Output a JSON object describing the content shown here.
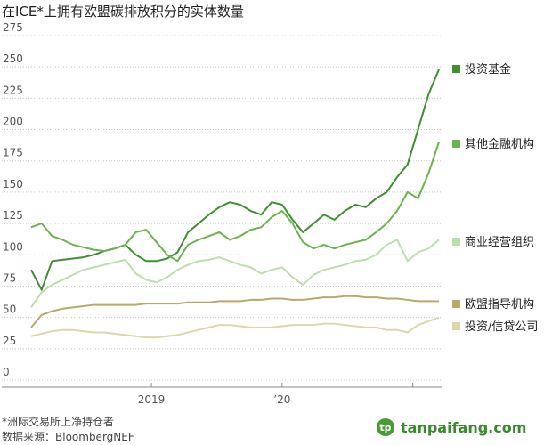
{
  "chart_data": {
    "type": "line",
    "title": "在ICE*上拥有欧盟碳排放积分的实体数量",
    "footnote": "*洲际交易所上净持仓者",
    "source": "数据来源：BloombergNEF",
    "watermark": "tanpaifang.com",
    "x": [
      2018.08,
      2018.16,
      2018.24,
      2018.32,
      2018.4,
      2018.48,
      2018.56,
      2018.64,
      2018.72,
      2018.8,
      2018.88,
      2018.96,
      2019.04,
      2019.12,
      2019.2,
      2019.28,
      2019.36,
      2019.44,
      2019.52,
      2019.6,
      2019.68,
      2019.76,
      2019.84,
      2019.92,
      2020.0,
      2020.08,
      2020.16,
      2020.24,
      2020.32,
      2020.4,
      2020.48,
      2020.56,
      2020.64,
      2020.72,
      2020.8,
      2020.88,
      2020.96,
      2021.04,
      2021.12,
      2021.2
    ],
    "xlim": [
      2018.08,
      2021.2
    ],
    "xticks": [
      2019,
      {
        "value": 2020,
        "label": "’20"
      }
    ],
    "minor_xticks": [
      2021
    ],
    "ylim": [
      0,
      275
    ],
    "yticks": [
      0,
      25,
      50,
      75,
      100,
      125,
      150,
      175,
      200,
      225,
      250,
      275
    ],
    "grid": true,
    "series": [
      {
        "name": "投资基金",
        "color": "#3f8f32",
        "values": [
          88,
          72,
          95,
          96,
          97,
          98,
          100,
          103,
          105,
          108,
          100,
          95,
          95,
          97,
          102,
          118,
          125,
          132,
          138,
          142,
          140,
          135,
          132,
          142,
          140,
          128,
          118,
          125,
          132,
          128,
          135,
          140,
          138,
          145,
          150,
          162,
          172,
          200,
          228,
          248
        ]
      },
      {
        "name": "其他金融机构",
        "color": "#6bb34e",
        "values": [
          122,
          125,
          115,
          112,
          108,
          106,
          104,
          103,
          105,
          108,
          118,
          120,
          110,
          100,
          95,
          108,
          112,
          115,
          118,
          112,
          115,
          120,
          122,
          130,
          135,
          125,
          110,
          105,
          108,
          105,
          108,
          110,
          112,
          118,
          125,
          135,
          150,
          145,
          165,
          190
        ]
      },
      {
        "name": "商业经营组织",
        "color": "#bfdeae",
        "values": [
          58,
          70,
          76,
          80,
          84,
          88,
          90,
          92,
          94,
          96,
          85,
          80,
          78,
          82,
          88,
          92,
          95,
          96,
          98,
          95,
          92,
          90,
          85,
          88,
          90,
          82,
          76,
          84,
          88,
          90,
          92,
          95,
          96,
          100,
          108,
          112,
          95,
          102,
          105,
          112
        ]
      },
      {
        "name": "欧盟指导机构",
        "color": "#b8aa6c",
        "values": [
          42,
          52,
          55,
          57,
          58,
          59,
          60,
          60,
          60,
          60,
          60,
          61,
          61,
          61,
          61,
          62,
          62,
          62,
          63,
          63,
          63,
          64,
          64,
          65,
          65,
          64,
          64,
          65,
          66,
          66,
          67,
          67,
          66,
          66,
          65,
          65,
          64,
          63,
          63,
          63
        ]
      },
      {
        "name": "投资/信贷公司",
        "color": "#ddd7ab",
        "values": [
          35,
          37,
          39,
          40,
          40,
          39,
          38,
          38,
          37,
          36,
          35,
          34,
          34,
          35,
          36,
          38,
          40,
          42,
          44,
          44,
          43,
          42,
          42,
          42,
          43,
          44,
          44,
          44,
          45,
          45,
          44,
          43,
          42,
          42,
          40,
          40,
          38,
          44,
          47,
          50
        ]
      }
    ]
  }
}
